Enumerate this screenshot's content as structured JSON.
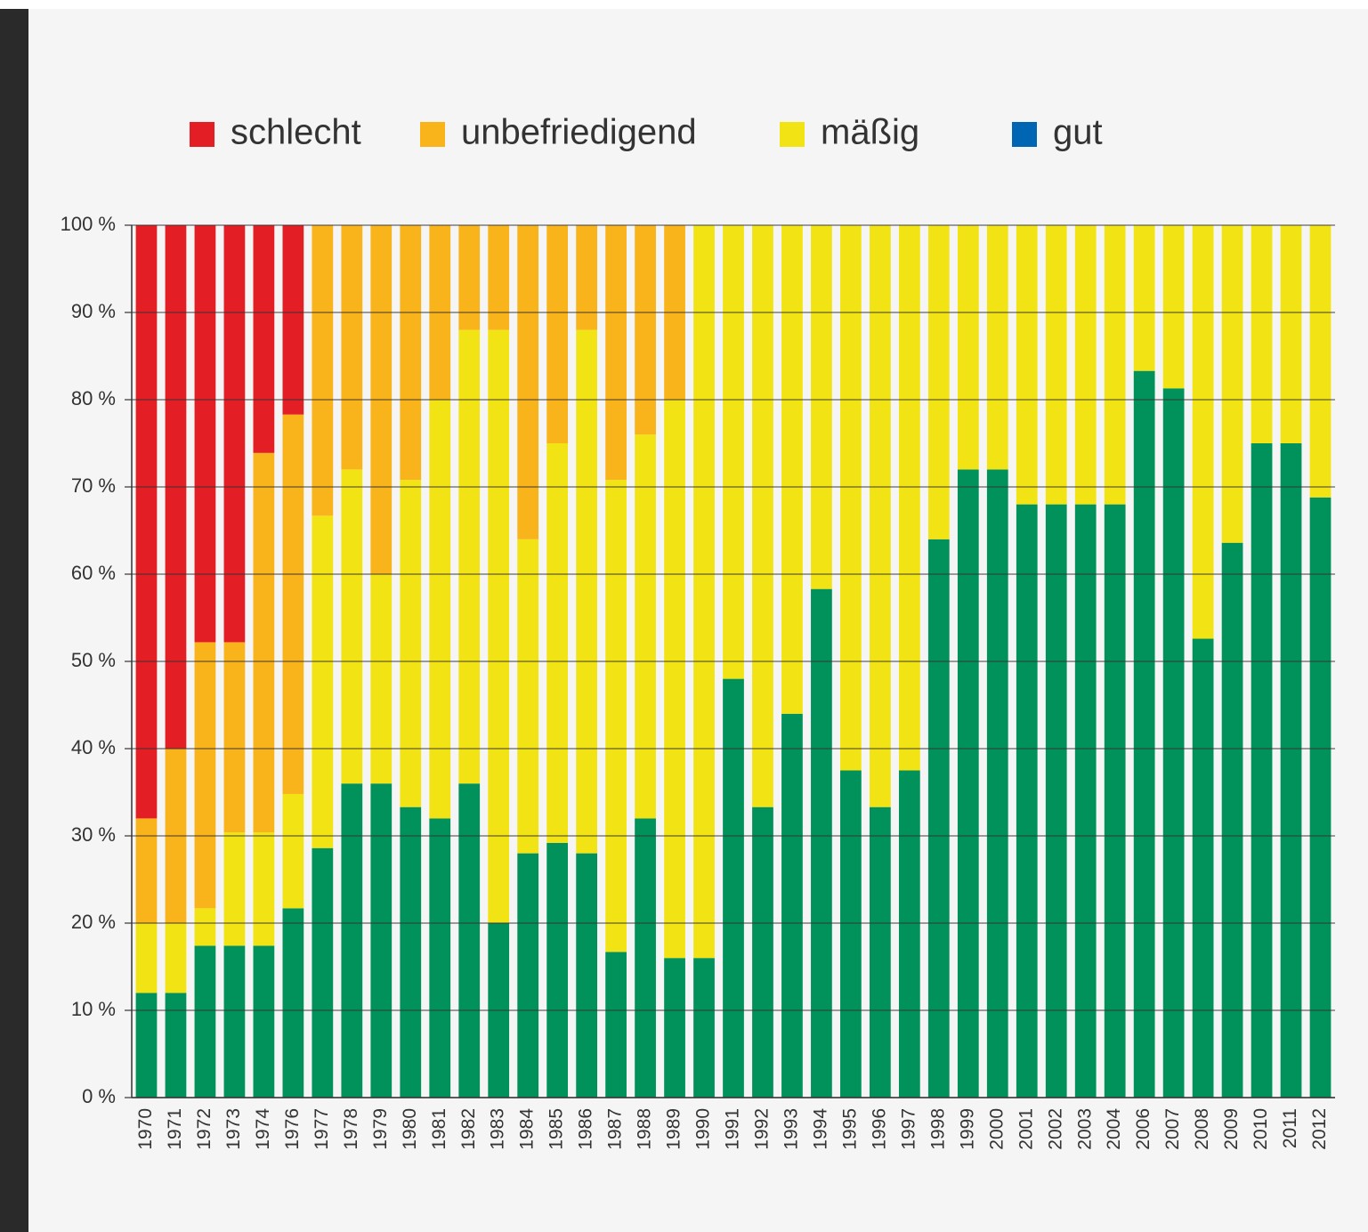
{
  "chart_data": {
    "type": "stacked_bar",
    "categories": [
      "1970",
      "1971",
      "1972",
      "1973",
      "1974",
      "1976",
      "1977",
      "1978",
      "1979",
      "1980",
      "1981",
      "1982",
      "1983",
      "1984",
      "1985",
      "1986",
      "1987",
      "1988",
      "1989",
      "1990",
      "1991",
      "1992",
      "1993",
      "1994",
      "1995",
      "1996",
      "1997",
      "1998",
      "1999",
      "2000",
      "2001",
      "2002",
      "2003",
      "2004",
      "2006",
      "2007",
      "2008",
      "2009",
      "2010",
      "2011",
      "2012"
    ],
    "series": [
      {
        "name": "schlecht",
        "color": "#e31e24",
        "values": [
          68,
          60,
          47.8,
          47.8,
          26.1,
          21.7,
          0,
          0,
          0,
          0,
          0,
          0,
          0,
          0,
          0,
          0,
          0,
          0,
          0,
          0,
          0,
          0,
          0,
          0,
          0,
          0,
          0,
          0,
          0,
          0,
          0,
          0,
          0,
          0,
          0,
          0,
          0,
          0,
          0,
          0,
          0
        ]
      },
      {
        "name": "unbefriedigend",
        "color": "#f9b31b",
        "values": [
          12,
          20,
          30.5,
          21.8,
          43.5,
          43.5,
          33.3,
          28,
          40,
          29.2,
          20,
          12,
          12,
          36,
          25,
          12,
          29.2,
          24,
          20,
          0,
          0,
          0,
          0,
          0,
          0,
          0,
          0,
          0,
          0,
          0,
          0,
          0,
          0,
          0,
          0,
          0,
          0,
          0,
          0,
          0,
          0
        ]
      },
      {
        "name": "mäßig",
        "color": "#f2e315",
        "values": [
          8,
          8,
          4.3,
          13,
          13,
          13.1,
          38.1,
          36,
          24,
          37.5,
          48,
          52,
          68,
          36,
          45.8,
          60,
          54.1,
          44,
          64,
          84,
          52,
          66.7,
          56,
          41.7,
          62.5,
          66.7,
          62.5,
          36,
          28,
          28,
          32,
          32,
          32,
          32,
          16.7,
          18.7,
          47.4,
          36.4,
          25,
          25,
          31.2
        ]
      },
      {
        "name": "gut",
        "color": "#00925a",
        "legend_color": "#0066b3",
        "values": [
          12,
          12,
          17.4,
          17.4,
          17.4,
          21.7,
          28.6,
          36,
          36,
          33.3,
          32,
          36,
          20,
          28,
          29.2,
          28,
          16.7,
          32,
          16,
          16,
          48,
          33.3,
          44,
          58.3,
          37.5,
          33.3,
          37.5,
          64,
          72,
          72,
          68,
          68,
          68,
          68,
          83.3,
          81.3,
          52.6,
          63.6,
          75,
          75,
          68.8
        ]
      }
    ],
    "ylim": [
      0,
      100
    ],
    "yticks": [
      {
        "value": 0,
        "label": "0 %"
      },
      {
        "value": 10,
        "label": "10 %"
      },
      {
        "value": 20,
        "label": "20 %"
      },
      {
        "value": 30,
        "label": "30 %"
      },
      {
        "value": 40,
        "label": "40 %"
      },
      {
        "value": 50,
        "label": "50 %"
      },
      {
        "value": 60,
        "label": "60 %"
      },
      {
        "value": 70,
        "label": "70 %"
      },
      {
        "value": 80,
        "label": "80 %"
      },
      {
        "value": 90,
        "label": "90 %"
      },
      {
        "value": 100,
        "label": "100 %"
      }
    ],
    "grid": true,
    "legend": "top"
  }
}
